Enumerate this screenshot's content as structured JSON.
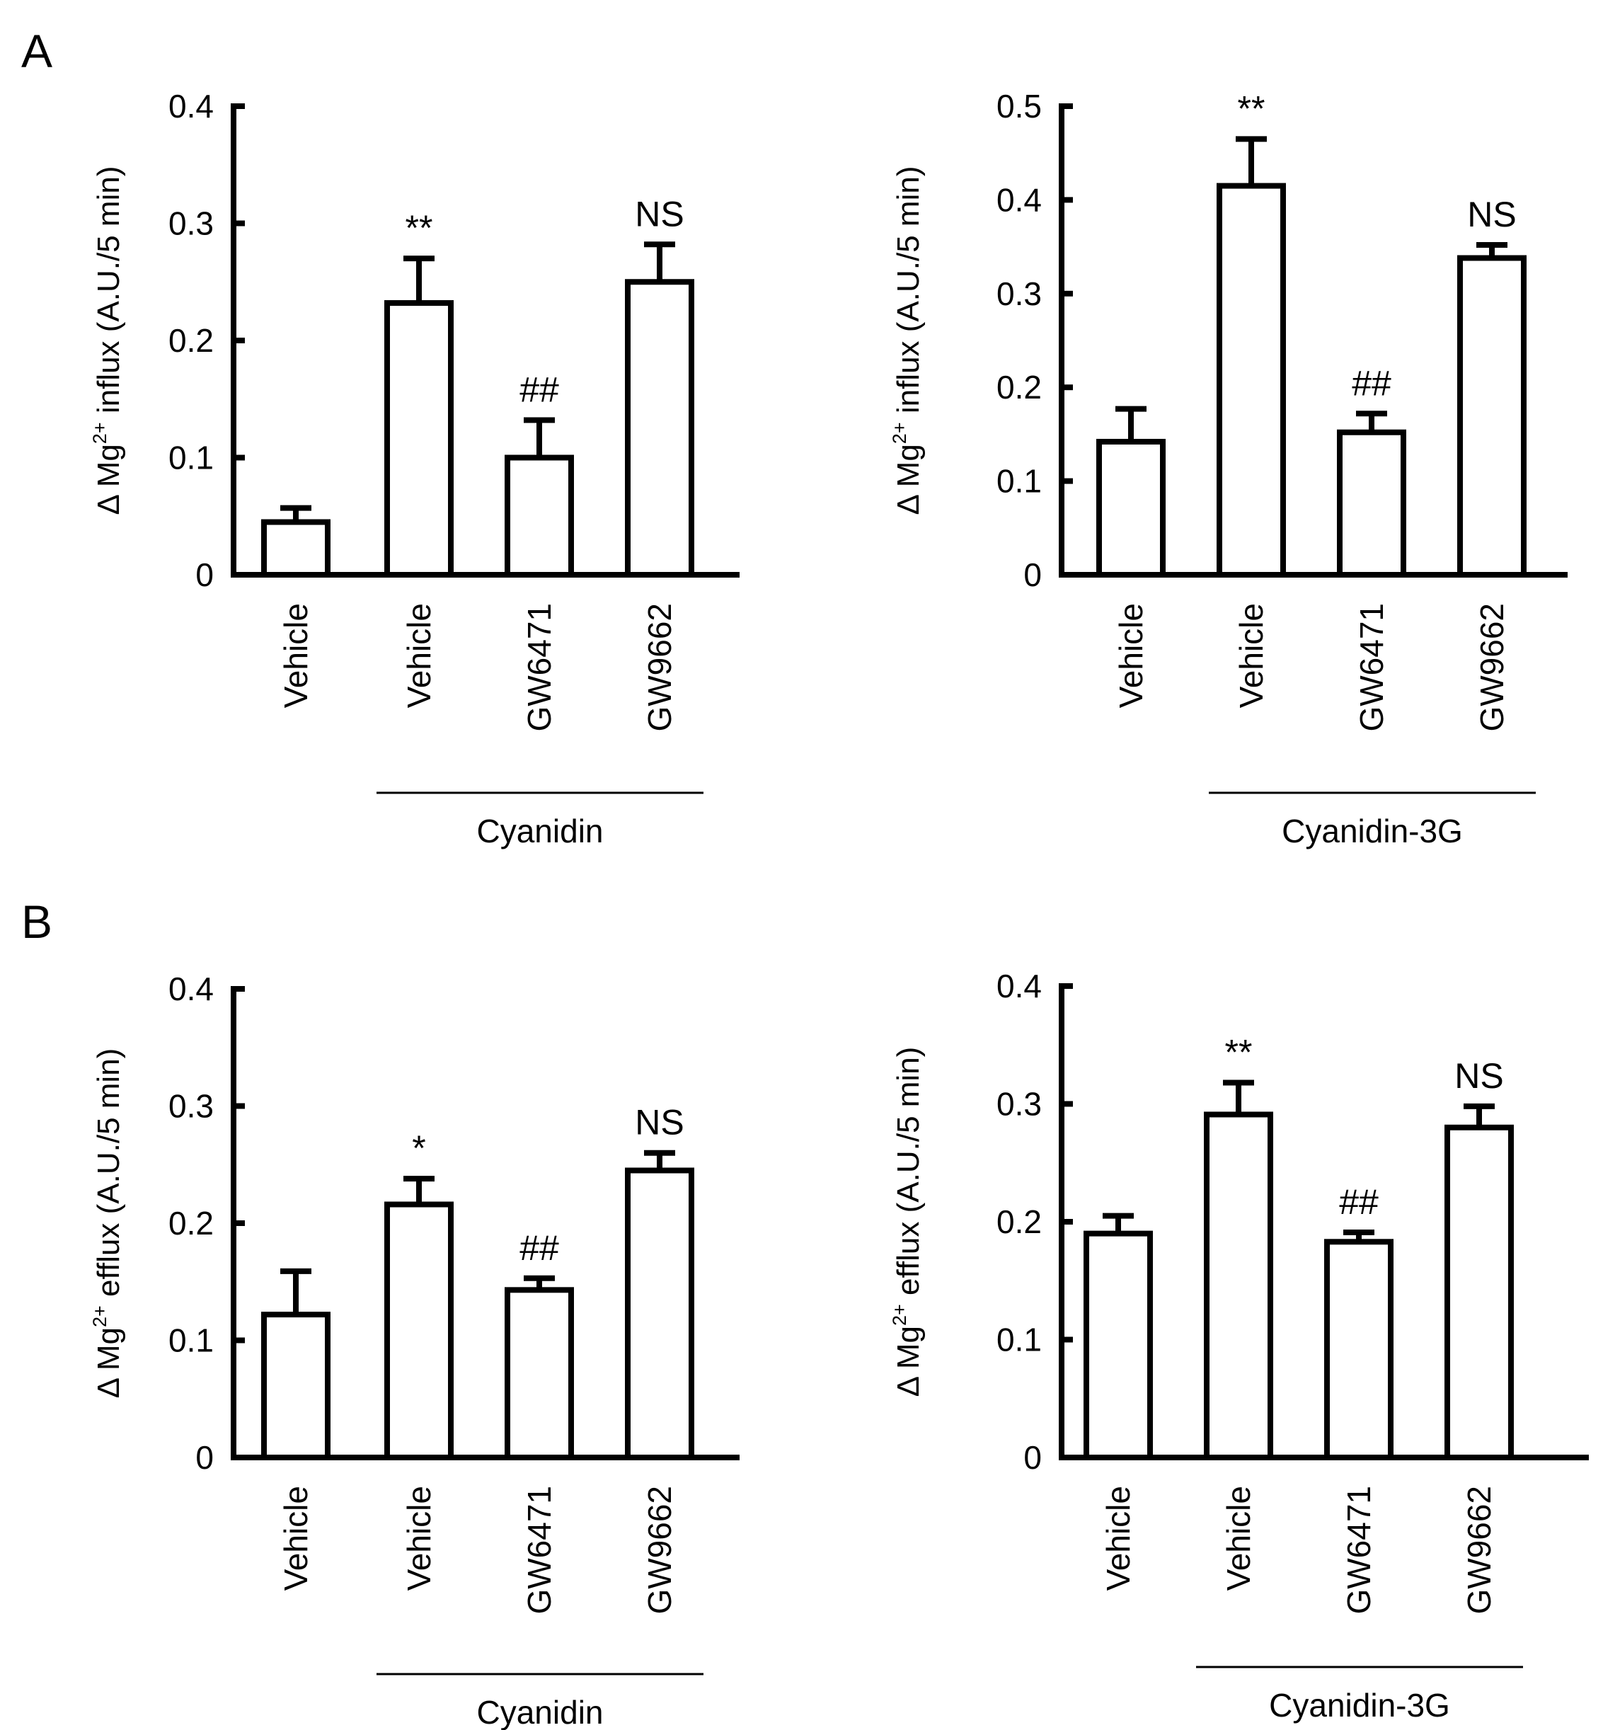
{
  "panels": {
    "A": "A",
    "B": "B"
  },
  "chart_data": [
    {
      "type": "bar",
      "panel": "A",
      "position": "left",
      "ylabel_pre": "Δ Mg",
      "ylabel_sup": "2+",
      "ylabel_post": " influx  (A.U./5 min)",
      "ylim": [
        0,
        0.4
      ],
      "yticks": [
        "0",
        "0.1",
        "0.2",
        "0.3",
        "0.4"
      ],
      "categories": [
        "Vehicle",
        "Vehicle",
        "GW6471",
        "GW9662"
      ],
      "values": [
        0.045,
        0.232,
        0.1,
        0.25
      ],
      "errors": [
        0.012,
        0.038,
        0.032,
        0.032
      ],
      "annotations": [
        "",
        "**",
        "##",
        "NS"
      ],
      "group_label": "Cyanidin",
      "group_span": [
        1,
        3
      ]
    },
    {
      "type": "bar",
      "panel": "A",
      "position": "right",
      "ylabel_pre": "Δ Mg",
      "ylabel_sup": "2+",
      "ylabel_post": " influx  (A.U./5 min)",
      "ylim": [
        0,
        0.5
      ],
      "yticks": [
        "0",
        "0.1",
        "0.2",
        "0.3",
        "0.4",
        "0.5"
      ],
      "categories": [
        "Vehicle",
        "Vehicle",
        "GW6471",
        "GW9662"
      ],
      "values": [
        0.142,
        0.415,
        0.152,
        0.338
      ],
      "errors": [
        0.035,
        0.05,
        0.02,
        0.014
      ],
      "annotations": [
        "",
        "**",
        "##",
        "NS"
      ],
      "group_label": "Cyanidin-3G",
      "group_span": [
        1,
        3
      ]
    },
    {
      "type": "bar",
      "panel": "B",
      "position": "left",
      "ylabel_pre": "Δ Mg",
      "ylabel_sup": "2+",
      "ylabel_post": " efflux  (A.U./5 min)",
      "ylim": [
        0,
        0.4
      ],
      "yticks": [
        "0",
        "0.1",
        "0.2",
        "0.3",
        "0.4"
      ],
      "categories": [
        "Vehicle",
        "Vehicle",
        "GW6471",
        "GW9662"
      ],
      "values": [
        0.122,
        0.216,
        0.143,
        0.245
      ],
      "errors": [
        0.037,
        0.022,
        0.01,
        0.015
      ],
      "annotations": [
        "",
        "*",
        "##",
        "NS"
      ],
      "group_label": "Cyanidin",
      "group_span": [
        1,
        3
      ]
    },
    {
      "type": "bar",
      "panel": "B",
      "position": "right",
      "ylabel_pre": "Δ Mg",
      "ylabel_sup": "2+",
      "ylabel_post": " efflux  (A.U./5 min)",
      "ylim": [
        0,
        0.4
      ],
      "yticks": [
        "0",
        "0.1",
        "0.2",
        "0.3",
        "0.4"
      ],
      "categories": [
        "Vehicle",
        "Vehicle",
        "GW6471",
        "GW9662"
      ],
      "values": [
        0.19,
        0.291,
        0.183,
        0.28
      ],
      "errors": [
        0.015,
        0.027,
        0.008,
        0.018
      ],
      "annotations": [
        "",
        "**",
        "##",
        "NS"
      ],
      "group_label": "Cyanidin-3G",
      "group_span": [
        1,
        3
      ]
    }
  ]
}
